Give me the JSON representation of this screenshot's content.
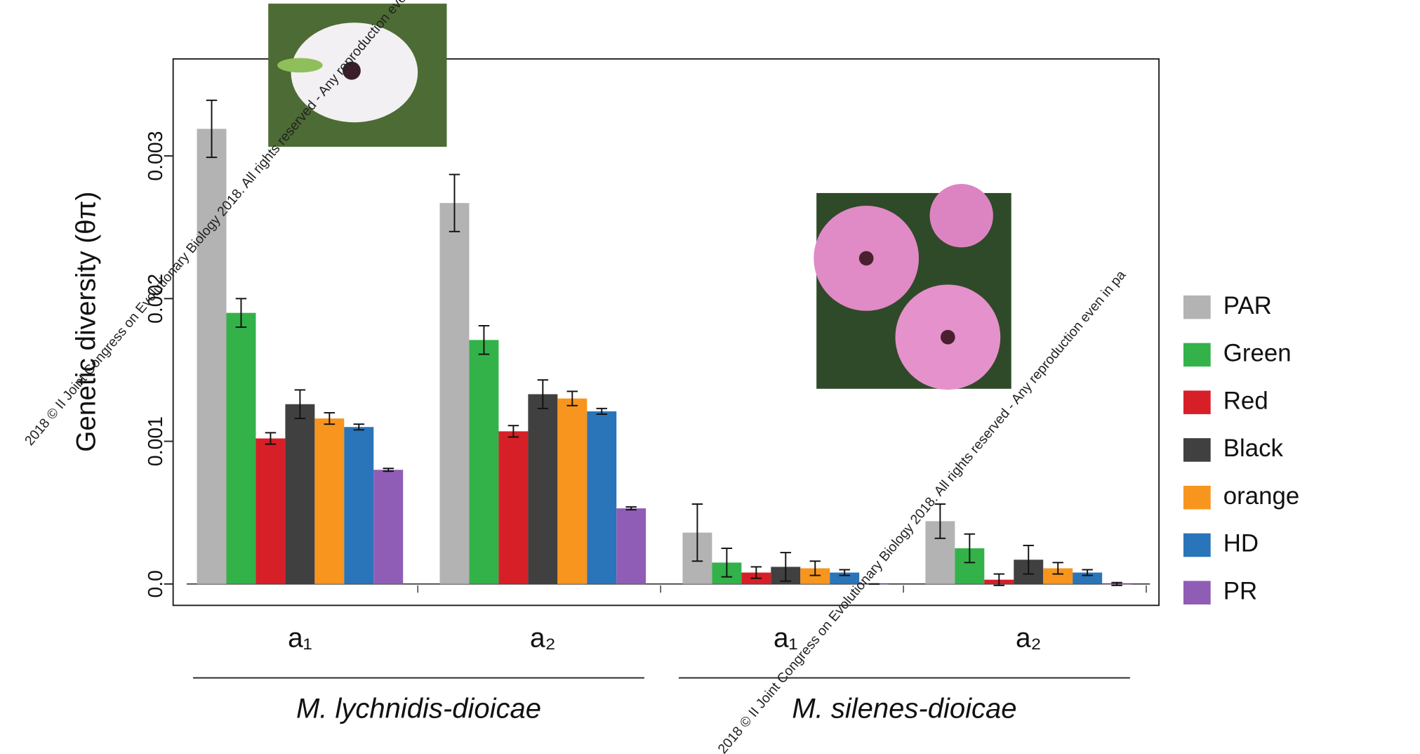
{
  "chart_data": {
    "type": "bar",
    "ylabel": "Genetic diversity (θπ)",
    "categories": [
      "a₁",
      "a₂",
      "a₁",
      "a₂"
    ],
    "groups": [
      "M. lychnidis-dioicae",
      "M. silenes-dioicae"
    ],
    "ylim": [
      -0.00015,
      0.00368
    ],
    "yticks": [
      {
        "value": 0,
        "label": "0.0"
      },
      0.001,
      0.002,
      0.003
    ],
    "series": [
      {
        "name": "PAR",
        "color": "#b3b3b3",
        "values": [
          0.00319,
          0.00267,
          0.00036,
          0.00044
        ],
        "errors": [
          0.0002,
          0.0002,
          0.0002,
          0.00012
        ]
      },
      {
        "name": "Green",
        "color": "#33b24a",
        "values": [
          0.0019,
          0.00171,
          0.00015,
          0.00025
        ],
        "errors": [
          0.0001,
          0.0001,
          0.0001,
          0.0001
        ]
      },
      {
        "name": "Red",
        "color": "#d71f27",
        "values": [
          0.00102,
          0.00107,
          8e-05,
          3e-05
        ],
        "errors": [
          4e-05,
          4e-05,
          4e-05,
          4e-05
        ]
      },
      {
        "name": "Black",
        "color": "#404040",
        "values": [
          0.00126,
          0.00133,
          0.00012,
          0.00017
        ],
        "errors": [
          0.0001,
          0.0001,
          0.0001,
          0.0001
        ]
      },
      {
        "name": "orange",
        "color": "#f7951f",
        "values": [
          0.00116,
          0.0013,
          0.00011,
          0.00011
        ],
        "errors": [
          4e-05,
          5e-05,
          5e-05,
          4e-05
        ]
      },
      {
        "name": "HD",
        "color": "#2a74b9",
        "values": [
          0.0011,
          0.00121,
          8e-05,
          8e-05
        ],
        "errors": [
          2e-05,
          2e-05,
          2e-05,
          2e-05
        ]
      },
      {
        "name": "PR",
        "color": "#8f5db6",
        "values": [
          0.0008,
          0.00053,
          0,
          0
        ],
        "errors": [
          1e-05,
          1e-05,
          0,
          1e-05
        ]
      }
    ],
    "legend": "right",
    "watermark": "2018 © II Joint Congress on Evolutionary Biology 2018. All rights reserved - Any reproduction even in pa"
  }
}
